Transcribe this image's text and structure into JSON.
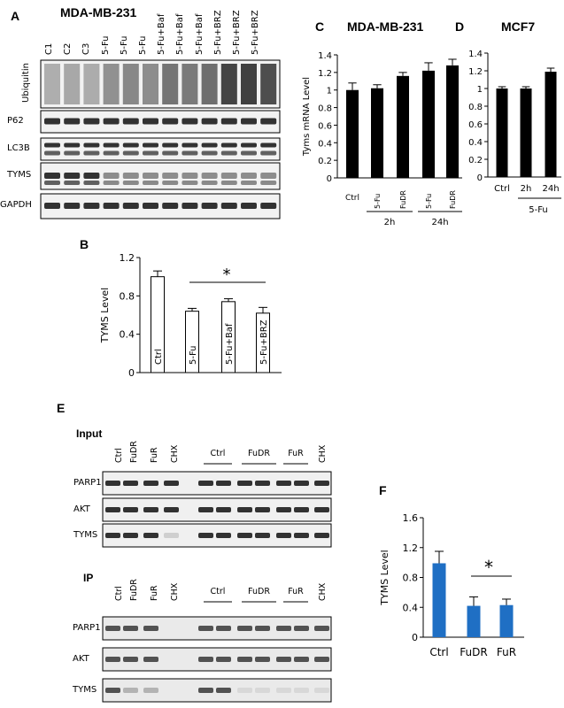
{
  "panel_a": {
    "letter": "A",
    "title": "MDA-MB-231",
    "lanes": [
      "C1",
      "C2",
      "C3",
      "5-Fu",
      "5-Fu",
      "5-Fu",
      "5-Fu+Baf",
      "5-Fu+Baf",
      "5-Fu+Baf",
      "5-Fu+BRZ",
      "5-Fu+BRZ",
      "5-Fu+BRZ"
    ],
    "blots": [
      "Ubiquitin",
      "P62",
      "LC3B",
      "TYMS",
      "GAPDH"
    ]
  },
  "panel_b": {
    "letter": "B"
  },
  "panel_c": {
    "letter": "C",
    "title": "MDA-MB-231"
  },
  "panel_d": {
    "letter": "D",
    "title": "MCF7"
  },
  "panel_e": {
    "letter": "E",
    "input_label": "Input",
    "ip_label": "IP",
    "lanes_left": [
      "Ctrl",
      "FuDR",
      "FuR",
      "CHX"
    ],
    "groups_right": [
      "Ctrl",
      "FuDR",
      "FuR"
    ],
    "lane_right_last": "CHX",
    "blots": [
      "PARP1",
      "AKT",
      "TYMS"
    ]
  },
  "panel_f": {
    "letter": "F"
  },
  "chart_data": [
    {
      "id": "B",
      "type": "bar",
      "categories": [
        "Ctrl",
        "5-Fu",
        "5-Fu+Baf",
        "5-Fu+BRZ"
      ],
      "values": [
        1.0,
        0.64,
        0.74,
        0.62
      ],
      "errors": [
        0.06,
        0.03,
        0.03,
        0.06
      ],
      "ylabel": "TYMS Level",
      "yticks": [
        0,
        0.4,
        0.8,
        1.2
      ],
      "ylim": [
        0,
        1.2
      ],
      "bar_color": "#ffffff",
      "significance": "*"
    },
    {
      "id": "C",
      "type": "bar",
      "categories": [
        "Ctrl",
        "5-Fu",
        "FuDR",
        "5-Fu",
        "FuDR"
      ],
      "groups": [
        "2h",
        "24h"
      ],
      "values": [
        1.0,
        1.02,
        1.16,
        1.22,
        1.28
      ],
      "errors": [
        0.08,
        0.04,
        0.04,
        0.09,
        0.07
      ],
      "ylabel": "Tyms mRNA Level",
      "yticks": [
        0,
        0.2,
        0.4,
        0.6,
        0.8,
        1,
        1.2,
        1.4
      ],
      "ylim": [
        0,
        1.4
      ],
      "bar_color": "#000000"
    },
    {
      "id": "D",
      "type": "bar",
      "categories": [
        "Ctrl",
        "2h",
        "24h"
      ],
      "group": "5-Fu",
      "values": [
        1.0,
        1.0,
        1.19
      ],
      "errors": [
        0.02,
        0.02,
        0.04
      ],
      "yticks": [
        0,
        0.2,
        0.4,
        0.6,
        0.8,
        1,
        1.2,
        1.4
      ],
      "ylim": [
        0,
        1.4
      ],
      "bar_color": "#000000"
    },
    {
      "id": "F",
      "type": "bar",
      "categories": [
        "Ctrl",
        "FuDR",
        "FuR"
      ],
      "values": [
        0.99,
        0.42,
        0.43
      ],
      "errors": [
        0.16,
        0.12,
        0.08
      ],
      "ylabel": "TYMS Level",
      "yticks": [
        0,
        0.4,
        0.8,
        1.2,
        1.6
      ],
      "ylim": [
        0,
        1.6
      ],
      "bar_color": "#1f6fc4",
      "significance": "*"
    }
  ]
}
